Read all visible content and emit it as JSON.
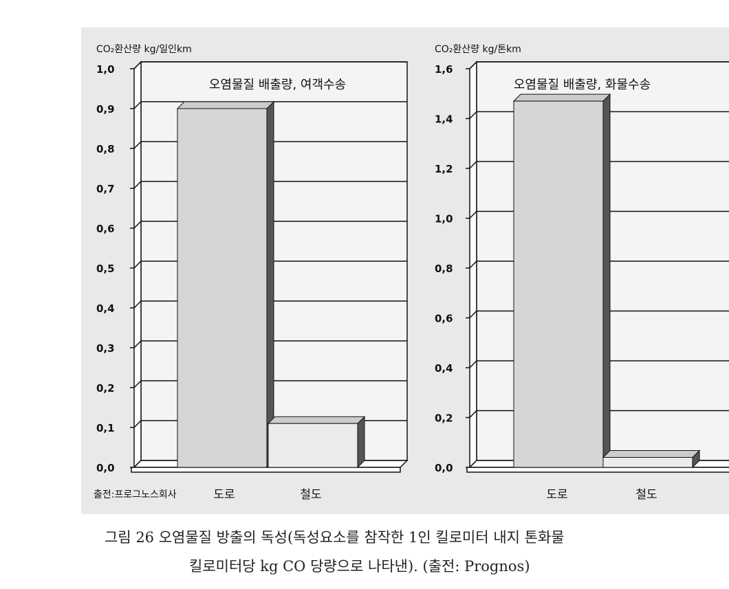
{
  "caption": {
    "line1": "그림 26   오염물질 방출의 독성(독성요소를 참작한 1인 킬로미터 내지 톤화물",
    "line2": "킬로미터당 kg CO 당량으로 나타낸). (출전: Prognos)"
  },
  "source_note": "출전:프로그노스회사",
  "chart_data": [
    {
      "type": "bar",
      "title": "오염물질 배출량, 여객수송",
      "ylabel": "CO₂환산량 kg/일인km",
      "categories": [
        "도로",
        "철도"
      ],
      "values": [
        0.9,
        0.11
      ],
      "ylim": [
        0,
        1.0
      ],
      "yticks": [
        "0,0",
        "0,1",
        "0,2",
        "0,3",
        "0,4",
        "0,5",
        "0,6",
        "0,7",
        "0,8",
        "0,9",
        "1,0"
      ],
      "grid": true,
      "style": "3d"
    },
    {
      "type": "bar",
      "title": "오염물질 배출량, 화물수송",
      "ylabel": "CO₂환산량 kg/톤km",
      "categories": [
        "도로",
        "철도"
      ],
      "values": [
        1.47,
        0.04
      ],
      "ylim": [
        0,
        1.6
      ],
      "yticks": [
        "0,0",
        "0,2",
        "0,4",
        "0,6",
        "0,8",
        "1,0",
        "1,2",
        "1,4",
        "1,6"
      ],
      "grid": true,
      "style": "3d"
    }
  ]
}
